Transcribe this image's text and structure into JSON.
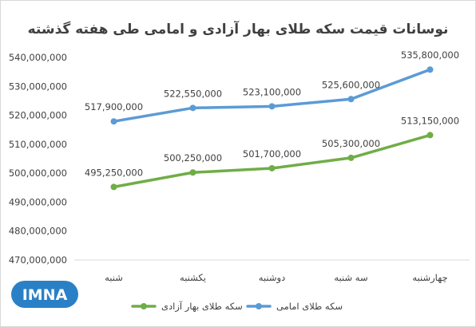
{
  "chart_data": {
    "type": "line",
    "title": "نوسانات قیمت سکه طلای بهار آزادی و امامی طی هفته گذشته",
    "categories": [
      "شنبه",
      "یکشنبه",
      "دوشنبه",
      "سه شنبه",
      "چهارشنبه"
    ],
    "y_ticks": [
      "470,000,000",
      "480,000,000",
      "490,000,000",
      "500,000,000",
      "510,000,000",
      "520,000,000",
      "530,000,000",
      "540,000,000"
    ],
    "ylim": [
      470000000,
      540000000
    ],
    "grid": false,
    "legend_position": "bottom",
    "series": [
      {
        "name": "سکه طلای امامی",
        "color": "#5b9bd5",
        "values": [
          517900000,
          522550000,
          523100000,
          525600000,
          535800000
        ],
        "labels": [
          "517,900,000",
          "522,550,000",
          "523,100,000",
          "525,600,000",
          "535,800,000"
        ]
      },
      {
        "name": "سکه طلای بهار آزادی",
        "color": "#70ad47",
        "values": [
          495250000,
          500250000,
          501700000,
          505300000,
          513150000
        ],
        "labels": [
          "495,250,000",
          "500,250,000",
          "501,700,000",
          "505,300,000",
          "513,150,000"
        ]
      }
    ]
  },
  "logo": {
    "text": "IMNA",
    "color": "#2a80c6"
  }
}
